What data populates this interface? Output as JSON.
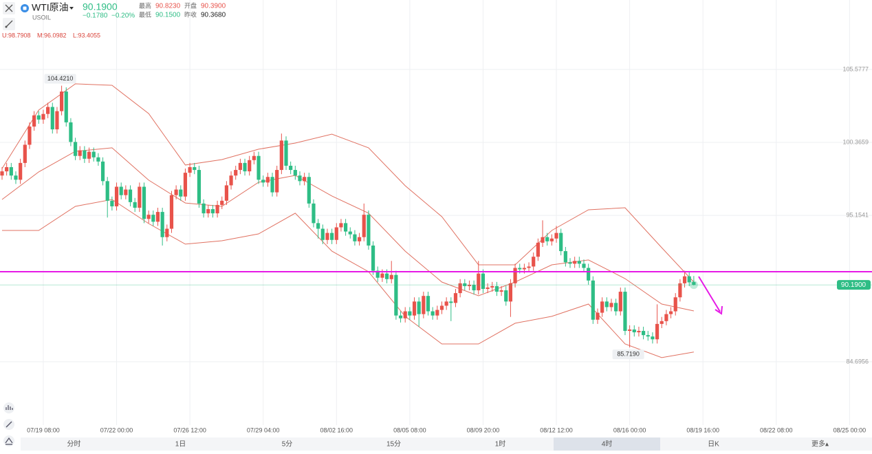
{
  "header": {
    "name": "WTI原油",
    "symbol": "USOIL",
    "price": "90.1900",
    "change": "−0.1780",
    "change_pct": "−0.20%",
    "stats": [
      {
        "label": "最高",
        "value": "90.8230"
      },
      {
        "label": "开盘",
        "value": "90.3900"
      },
      {
        "label": "最低",
        "value": "90.1500"
      },
      {
        "label": "昨收",
        "value": "90.3680"
      }
    ],
    "indicator": [
      "U:98.7908",
      "M:96.0982",
      "L:93.4055"
    ]
  },
  "tabs": [
    "分时",
    "1日",
    "5分",
    "15分",
    "1时",
    "4时",
    "日K",
    "更多▴"
  ],
  "selected_tab": 5,
  "chart_data": {
    "type": "candlestick",
    "ylim": [
      80.17,
      108.33
    ],
    "yticks": [
      {
        "value": 105.5777,
        "label": "105.5777"
      },
      {
        "value": 100.3659,
        "label": "100.3659"
      },
      {
        "value": 95.1541,
        "label": "95.1541"
      },
      {
        "value": 84.6956,
        "label": "84.6956"
      }
    ],
    "xlim": [
      -0.45,
      189.9
    ],
    "xticks": [
      {
        "value": 9,
        "label": "07/19 08:00"
      },
      {
        "value": 25,
        "label": "07/22 00:00"
      },
      {
        "value": 41,
        "label": "07/26 12:00"
      },
      {
        "value": 57,
        "label": "07/29 04:00"
      },
      {
        "value": 73,
        "label": "08/02 16:00"
      },
      {
        "value": 89,
        "label": "08/05 08:00"
      },
      {
        "value": 105,
        "label": "08/09 20:00"
      },
      {
        "value": 121,
        "label": "08/12 12:00"
      },
      {
        "value": 137,
        "label": "08/16 00:00"
      },
      {
        "value": 153,
        "label": "08/19 16:00"
      },
      {
        "value": 169,
        "label": "08/22 08:00"
      },
      {
        "value": 185,
        "label": "08/25 00:00"
      }
    ],
    "grid": true,
    "up_color": "#e8534b",
    "down_color": "#2ebd85",
    "open": [
      98.0,
      98.3,
      98.6,
      98.0,
      97.7,
      98.9,
      100.2,
      101.5,
      102.3,
      102.0,
      102.4,
      102.9,
      101.3,
      102.6,
      104.0,
      101.8,
      100.4,
      99.4,
      99.8,
      99.2,
      99.7,
      99.3,
      99.0,
      97.6,
      96.2,
      95.8,
      97.2,
      96.6,
      97.0,
      96.1,
      95.7,
      97.2,
      94.9,
      95.2,
      94.7,
      95.4,
      93.6,
      94.2,
      96.6,
      97.0,
      96.5,
      98.2,
      98.6,
      98.4,
      96.0,
      95.3,
      95.6,
      95.3,
      95.9,
      96.2,
      97.3,
      98.0,
      98.4,
      98.9,
      98.3,
      99.1,
      99.4,
      97.7,
      97.5,
      97.9,
      96.8,
      98.4,
      100.5,
      98.7,
      98.4,
      98.0,
      97.6,
      97.9,
      96.0,
      94.6,
      94.2,
      93.4,
      93.9,
      93.4,
      94.3,
      94.6,
      94.0,
      93.8,
      93.3,
      93.6,
      95.2,
      93.0,
      91.2,
      90.7,
      91.0,
      90.6,
      90.9,
      88.0,
      87.8,
      88.3,
      88.0,
      89.0,
      88.1,
      89.4,
      88.3,
      88.0,
      88.4,
      88.7,
      89.0,
      88.9,
      89.6,
      90.3,
      90.1,
      90.2,
      89.8,
      91.0,
      89.9,
      90.0,
      90.1,
      89.7,
      89.8,
      89.0,
      90.3,
      91.4,
      91.3,
      91.4,
      91.5,
      92.2,
      93.2,
      93.6,
      93.3,
      93.5,
      93.9,
      92.6,
      91.8,
      91.7,
      91.9,
      91.7,
      91.4,
      90.5,
      87.7,
      88.2,
      89.0,
      88.6,
      88.9,
      88.3,
      89.7,
      86.9,
      87.0,
      86.8,
      86.9,
      86.6,
      86.5,
      86.3,
      87.4,
      87.6,
      88.1,
      88.3,
      89.3,
      90.3,
      90.8,
      90.39
    ],
    "high": [
      98.6,
      98.9,
      98.9,
      98.3,
      99.2,
      100.5,
      101.8,
      102.6,
      102.6,
      102.7,
      103.2,
      103.2,
      102.9,
      104.421,
      104.3,
      102.1,
      100.7,
      100.1,
      100.1,
      100.0,
      100.0,
      99.6,
      99.3,
      97.9,
      96.5,
      97.5,
      97.5,
      97.3,
      97.3,
      96.4,
      97.5,
      97.5,
      95.5,
      95.5,
      95.7,
      95.7,
      94.5,
      96.9,
      97.3,
      97.3,
      98.5,
      98.9,
      98.9,
      98.7,
      96.3,
      95.9,
      95.9,
      96.2,
      96.5,
      97.6,
      98.3,
      98.7,
      99.2,
      99.2,
      99.4,
      99.7,
      99.7,
      98.0,
      98.2,
      98.2,
      98.7,
      101.0,
      100.8,
      99.0,
      98.7,
      98.3,
      98.2,
      98.2,
      96.3,
      94.9,
      94.5,
      94.2,
      94.2,
      94.6,
      94.9,
      94.9,
      94.3,
      94.1,
      93.9,
      96.0,
      95.5,
      93.3,
      91.5,
      91.3,
      91.3,
      91.9,
      91.2,
      88.3,
      88.6,
      88.6,
      89.3,
      89.3,
      89.7,
      89.7,
      88.6,
      88.7,
      89.0,
      89.3,
      89.3,
      89.9,
      90.6,
      90.6,
      90.5,
      90.5,
      91.9,
      91.3,
      90.3,
      90.4,
      90.4,
      90.1,
      90.1,
      90.6,
      91.7,
      91.7,
      91.7,
      91.8,
      92.5,
      93.5,
      94.8,
      93.9,
      93.8,
      94.4,
      94.2,
      92.9,
      92.1,
      92.2,
      92.2,
      92.0,
      91.7,
      90.8,
      88.5,
      89.3,
      89.3,
      89.2,
      89.2,
      90.0,
      90.0,
      87.3,
      87.3,
      87.2,
      87.2,
      86.9,
      86.8,
      88.8,
      87.9,
      88.4,
      88.6,
      89.6,
      90.6,
      91.2,
      91.1,
      90.823
    ],
    "low": [
      97.7,
      98.0,
      97.7,
      97.4,
      97.4,
      98.6,
      99.9,
      101.2,
      101.7,
      101.7,
      102.1,
      101.0,
      101.0,
      102.3,
      101.5,
      100.1,
      99.1,
      99.1,
      98.9,
      98.9,
      99.0,
      98.7,
      97.3,
      95.0,
      95.5,
      95.5,
      96.3,
      96.3,
      95.8,
      95.4,
      95.4,
      94.6,
      94.6,
      94.4,
      94.4,
      93.0,
      93.3,
      93.9,
      96.3,
      96.2,
      96.2,
      97.9,
      98.1,
      95.7,
      95.0,
      95.0,
      95.0,
      95.0,
      95.6,
      95.9,
      97.0,
      97.7,
      98.1,
      98.0,
      98.0,
      98.8,
      97.4,
      97.2,
      97.2,
      96.5,
      96.5,
      98.1,
      98.4,
      98.1,
      97.7,
      97.3,
      97.3,
      95.7,
      94.3,
      93.5,
      93.1,
      93.1,
      93.1,
      93.1,
      94.0,
      93.7,
      93.5,
      93.0,
      93.0,
      93.3,
      92.7,
      90.9,
      90.4,
      90.4,
      90.3,
      90.3,
      87.7,
      87.5,
      87.5,
      87.7,
      87.7,
      87.2,
      87.8,
      88.0,
      87.7,
      87.7,
      88.1,
      88.4,
      87.6,
      88.6,
      89.3,
      89.8,
      89.8,
      89.5,
      89.5,
      89.6,
      89.6,
      89.7,
      89.4,
      89.4,
      88.7,
      87.9,
      90.0,
      91.0,
      91.0,
      91.1,
      91.2,
      91.9,
      92.9,
      93.0,
      93.0,
      93.2,
      92.3,
      91.5,
      91.4,
      91.4,
      91.4,
      91.1,
      90.2,
      87.4,
      87.4,
      87.9,
      88.3,
      88.3,
      88.0,
      88.0,
      86.6,
      85.719,
      86.5,
      86.5,
      86.3,
      86.2,
      86.0,
      86.0,
      87.1,
      87.3,
      87.8,
      88.0,
      89.0,
      90.0,
      90.1,
      90.15
    ],
    "close": [
      98.3,
      98.6,
      98.0,
      97.7,
      98.9,
      100.2,
      101.5,
      102.3,
      102.0,
      102.4,
      102.9,
      101.3,
      102.6,
      104.0,
      101.8,
      100.4,
      99.4,
      99.8,
      99.2,
      99.7,
      99.3,
      99.0,
      97.6,
      96.2,
      95.8,
      97.2,
      96.6,
      97.0,
      96.1,
      95.7,
      97.2,
      94.9,
      95.2,
      94.7,
      95.4,
      93.6,
      94.2,
      96.6,
      97.0,
      96.5,
      98.2,
      98.6,
      98.4,
      96.0,
      95.3,
      95.6,
      95.3,
      95.9,
      96.2,
      97.3,
      98.0,
      98.4,
      98.9,
      98.3,
      99.1,
      99.4,
      97.7,
      97.5,
      97.9,
      96.8,
      98.4,
      100.5,
      98.7,
      98.4,
      98.0,
      97.6,
      97.9,
      96.0,
      94.6,
      94.2,
      93.4,
      93.9,
      93.4,
      94.3,
      94.6,
      94.0,
      93.8,
      93.3,
      93.6,
      95.2,
      93.0,
      91.2,
      90.7,
      91.0,
      90.6,
      90.9,
      88.0,
      87.8,
      88.3,
      88.0,
      89.0,
      88.1,
      89.4,
      88.3,
      88.0,
      88.4,
      88.7,
      89.0,
      88.9,
      89.6,
      90.3,
      90.1,
      90.2,
      89.8,
      91.0,
      89.9,
      90.0,
      90.1,
      89.7,
      89.8,
      89.0,
      90.3,
      91.4,
      91.3,
      91.4,
      91.5,
      92.2,
      93.2,
      93.6,
      93.3,
      93.5,
      93.9,
      92.6,
      91.8,
      91.7,
      91.9,
      91.7,
      91.4,
      90.5,
      87.7,
      88.2,
      89.0,
      88.6,
      88.9,
      88.3,
      89.7,
      86.9,
      87.0,
      86.8,
      86.9,
      86.6,
      86.5,
      86.3,
      87.4,
      87.6,
      88.1,
      88.3,
      89.3,
      90.3,
      90.8,
      90.37,
      90.19
    ],
    "bands": [
      {
        "color": "#e07060",
        "x": [
          0,
          8,
          16,
          24,
          32,
          40,
          48,
          56,
          64,
          72,
          80,
          88,
          96,
          104,
          112,
          120,
          128,
          136,
          144,
          151
        ],
        "values": [
          98.5,
          102.68,
          104.55,
          104.45,
          102.43,
          98.75,
          99.14,
          99.88,
          100.32,
          100.96,
          99.98,
          97.27,
          95.06,
          91.62,
          91.62,
          94.08,
          95.55,
          95.7,
          92.85,
          90.39
        ]
      },
      {
        "color": "#e07060",
        "x": [
          0,
          8,
          16,
          24,
          32,
          40,
          48,
          56,
          64,
          72,
          80,
          88,
          96,
          104,
          112,
          120,
          128,
          136,
          144,
          151
        ],
        "values": [
          96.29,
          98.26,
          99.73,
          99.98,
          97.67,
          96.04,
          95.8,
          97.52,
          98.01,
          96.54,
          95.31,
          92.6,
          90.39,
          89.41,
          90.39,
          91.62,
          91.97,
          90.64,
          88.82,
          88.33
        ]
      },
      {
        "color": "#e07060",
        "x": [
          0,
          8,
          16,
          24,
          32,
          40,
          48,
          56,
          64,
          72,
          80,
          88,
          96,
          104,
          112,
          120,
          128,
          136,
          144,
          151
        ],
        "values": [
          94.08,
          94.08,
          95.8,
          96.29,
          94.57,
          93.1,
          93.34,
          93.83,
          95.31,
          92.6,
          91.13,
          87.94,
          85.97,
          85.97,
          87.45,
          87.94,
          88.82,
          85.97,
          84.99,
          85.39
        ]
      }
    ],
    "hline": {
      "value": 91.13,
      "color": "#e619e6"
    },
    "last_price": {
      "value": 90.19,
      "label": "90.1900",
      "color": "#2ebd85"
    },
    "annotations": [
      {
        "index": 13,
        "value": 104.421,
        "label": "104.4210"
      },
      {
        "index": 137,
        "value": 85.719,
        "label": "85.7190"
      }
    ]
  }
}
